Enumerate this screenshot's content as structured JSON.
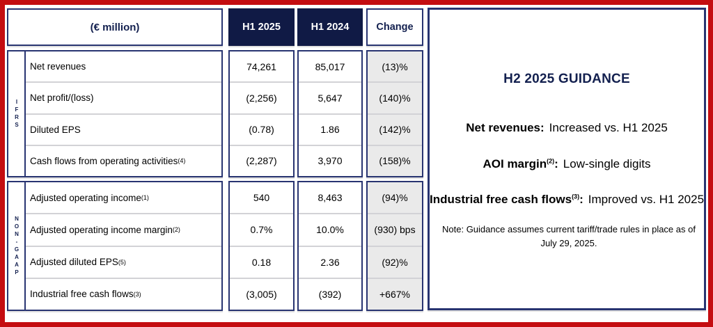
{
  "colors": {
    "navy_text": "#13204f",
    "navy_fill": "#101a45",
    "navy_border": "#283471",
    "frame_red": "#c40d11",
    "change_cell_bg": "#eaeaea"
  },
  "table": {
    "unit_header": "(€ million)",
    "columns": [
      "H1 2025",
      "H1 2024",
      "Change"
    ],
    "sections": [
      {
        "label": "IFRS",
        "rows": [
          {
            "label": "Net revenues",
            "sup": "",
            "values": [
              "74,261",
              "85,017",
              "(13)%"
            ]
          },
          {
            "label": "Net profit/(loss)",
            "sup": "",
            "values": [
              "(2,256)",
              "5,647",
              "(140)%"
            ]
          },
          {
            "label": "Diluted EPS",
            "sup": "",
            "values": [
              "(0.78)",
              "1.86",
              "(142)%"
            ]
          },
          {
            "label": "Cash flows from operating activities",
            "sup": "(4)",
            "values": [
              "(2,287)",
              "3,970",
              "(158)%"
            ]
          }
        ]
      },
      {
        "label": "NON-GAAP",
        "rows": [
          {
            "label": "Adjusted operating income",
            "sup": "(1)",
            "values": [
              "540",
              "8,463",
              "(94)%"
            ]
          },
          {
            "label": "Adjusted operating income margin",
            "sup": "(2)",
            "values": [
              "0.7%",
              "10.0%",
              "(930) bps"
            ]
          },
          {
            "label": "Adjusted diluted EPS",
            "sup": "(5)",
            "values": [
              "0.18",
              "2.36",
              "(92)%"
            ]
          },
          {
            "label": "Industrial free cash flows",
            "sup": "(3)",
            "values": [
              "(3,005)",
              "(392)",
              "+667%"
            ]
          }
        ]
      }
    ]
  },
  "guidance": {
    "title": "H2 2025 GUIDANCE",
    "colon": ":",
    "items": [
      {
        "label": "Net revenues",
        "sup": "",
        "value": "Increased vs. H1 2025"
      },
      {
        "label": "AOI margin",
        "sup": "(2)",
        "value": "Low-single digits"
      },
      {
        "label": "Industrial free cash flows",
        "sup": "(3)",
        "value": "Improved vs. H1 2025"
      }
    ],
    "note": "Note: Guidance assumes current tariff/trade rules in place as of July 29, 2025."
  }
}
